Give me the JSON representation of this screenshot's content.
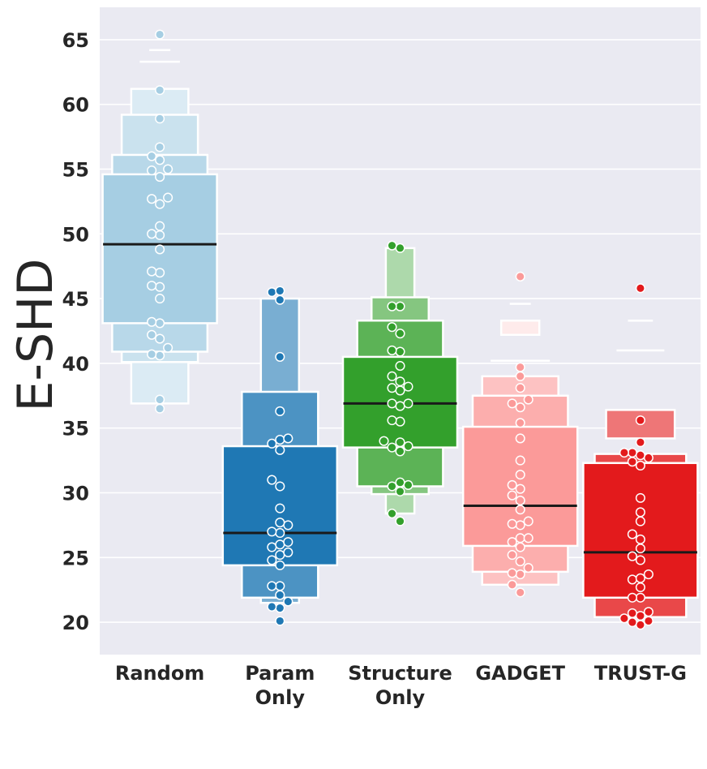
{
  "chart_data": {
    "type": "boxenplot",
    "title": "",
    "xlabel": "",
    "ylabel": "E-SHD",
    "ylim": [
      17.5,
      67.5
    ],
    "yticks": [
      20,
      25,
      30,
      35,
      40,
      45,
      50,
      55,
      60,
      65
    ],
    "grid": true,
    "categories": [
      {
        "label_lines": [
          "Random"
        ]
      },
      {
        "label_lines": [
          "Param",
          "Only"
        ]
      },
      {
        "label_lines": [
          "Structure",
          "Only"
        ]
      },
      {
        "label_lines": [
          "GADGET"
        ]
      },
      {
        "label_lines": [
          "TRUST-G"
        ]
      }
    ],
    "colors": {
      "Random": "#a6cee3",
      "Param Only": "#1f78b4",
      "Structure Only": "#33a02c",
      "GADGET": "#fb9a99",
      "TRUST-G": "#e31a1c",
      "background": "#eaeaf2",
      "grid": "#ffffff",
      "median": "#1a1a1a"
    },
    "series": [
      {
        "name": "Random",
        "median": 49.2,
        "levels": [
          [
            43.1,
            54.6
          ],
          [
            40.9,
            56.1
          ],
          [
            40.1,
            59.2
          ],
          [
            36.9,
            61.2
          ],
          [
            63.3,
            63.3
          ],
          [
            64.2,
            64.2
          ]
        ],
        "points": [
          65.4,
          61.1,
          58.9,
          56.7,
          56.0,
          55.7,
          55.0,
          54.9,
          54.4,
          52.8,
          52.7,
          52.3,
          50.6,
          50.0,
          49.9,
          48.8,
          47.1,
          47.0,
          46.0,
          45.9,
          45.0,
          43.2,
          43.1,
          42.2,
          41.9,
          41.2,
          40.7,
          40.6,
          37.2,
          36.5
        ]
      },
      {
        "name": "Param Only",
        "median": 26.9,
        "levels": [
          [
            24.4,
            33.6
          ],
          [
            21.9,
            37.8
          ],
          [
            21.5,
            45.0
          ]
        ],
        "points": [
          45.6,
          45.5,
          44.9,
          40.5,
          36.3,
          34.2,
          34.1,
          33.8,
          33.3,
          31.0,
          30.5,
          28.8,
          27.7,
          27.5,
          27.0,
          26.9,
          26.2,
          26.0,
          25.8,
          25.4,
          25.2,
          24.8,
          24.4,
          22.8,
          22.8,
          22.1,
          21.6,
          21.2,
          21.1,
          20.1
        ]
      },
      {
        "name": "Structure Only",
        "median": 36.9,
        "levels": [
          [
            33.5,
            40.5
          ],
          [
            30.5,
            43.3
          ],
          [
            29.9,
            45.1
          ],
          [
            28.4,
            48.9
          ]
        ],
        "points": [
          49.1,
          48.9,
          44.4,
          44.4,
          42.8,
          42.3,
          41.0,
          40.9,
          39.8,
          39.0,
          38.6,
          38.1,
          38.2,
          37.9,
          36.9,
          36.9,
          36.7,
          35.6,
          35.5,
          34.0,
          33.9,
          33.6,
          33.5,
          33.2,
          30.8,
          30.6,
          30.5,
          30.1,
          28.4,
          27.8
        ]
      },
      {
        "name": "GADGET",
        "median": 29.0,
        "levels": [
          [
            25.9,
            35.1
          ],
          [
            23.9,
            37.5
          ],
          [
            22.9,
            39.0
          ],
          [
            40.2,
            40.2
          ],
          [
            42.2,
            43.3
          ],
          [
            44.6,
            44.6
          ]
        ],
        "points": [
          46.7,
          39.7,
          39.0,
          38.1,
          37.2,
          36.9,
          36.6,
          35.4,
          34.2,
          32.5,
          31.4,
          30.6,
          30.3,
          29.8,
          29.4,
          28.7,
          27.8,
          27.6,
          27.5,
          26.5,
          26.5,
          26.2,
          25.8,
          25.2,
          24.7,
          24.2,
          23.8,
          23.7,
          22.9,
          22.3
        ]
      },
      {
        "name": "TRUST-G",
        "median": 25.4,
        "levels": [
          [
            21.9,
            32.3
          ],
          [
            20.4,
            33.0
          ],
          [
            34.2,
            36.4
          ],
          [
            41.0,
            41.0
          ],
          [
            43.3,
            43.3
          ]
        ],
        "points": [
          45.8,
          35.6,
          33.9,
          33.1,
          33.1,
          32.9,
          32.7,
          32.4,
          32.1,
          29.6,
          28.5,
          27.8,
          26.8,
          26.4,
          25.7,
          25.1,
          24.8,
          23.7,
          23.4,
          23.3,
          22.7,
          21.9,
          21.9,
          20.8,
          20.7,
          20.5,
          20.3,
          20.1,
          20.0,
          19.8
        ]
      }
    ]
  }
}
